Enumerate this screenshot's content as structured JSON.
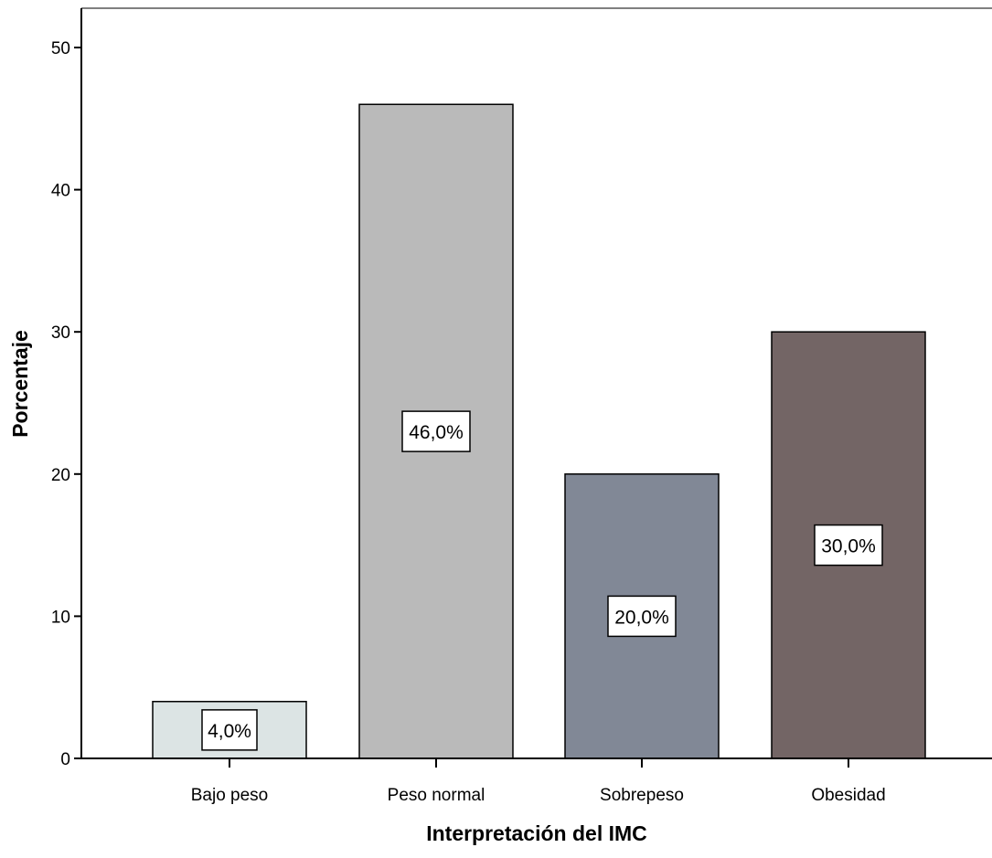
{
  "chart_data": {
    "type": "bar",
    "title": "",
    "xlabel": "Interpretación del IMC",
    "ylabel": "Porcentaje",
    "categories": [
      "Bajo peso",
      "Peso normal",
      "Sobrepeso",
      "Obesidad"
    ],
    "values": [
      4.0,
      46.0,
      20.0,
      30.0
    ],
    "data_labels": [
      "4,0%",
      "46,0%",
      "20,0%",
      "30,0%"
    ],
    "bar_colors": [
      "#dce4e4",
      "#bababa",
      "#818896",
      "#736565"
    ],
    "ylim": [
      0,
      50
    ],
    "yticks": [
      0,
      10,
      20,
      30,
      40,
      50
    ],
    "grid": false,
    "legend": "none"
  }
}
